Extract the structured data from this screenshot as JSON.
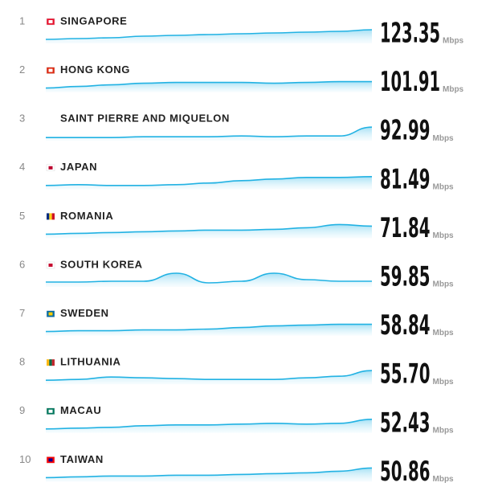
{
  "rows": [
    {
      "rank": 1,
      "country": "SINGAPORE",
      "speed": "123.35",
      "unit": "Mbps"
    },
    {
      "rank": 2,
      "country": "HONG KONG",
      "speed": "101.91",
      "unit": "Mbps"
    },
    {
      "rank": 3,
      "country": "SAINT PIERRE AND MIQUELON",
      "speed": "92.99",
      "unit": "Mbps"
    },
    {
      "rank": 4,
      "country": "JAPAN",
      "speed": "81.49",
      "unit": "Mbps"
    },
    {
      "rank": 5,
      "country": "ROMANIA",
      "speed": "71.84",
      "unit": "Mbps"
    },
    {
      "rank": 6,
      "country": "SOUTH KOREA",
      "speed": "59.85",
      "unit": "Mbps"
    },
    {
      "rank": 7,
      "country": "SWEDEN",
      "speed": "58.84",
      "unit": "Mbps"
    },
    {
      "rank": 8,
      "country": "LITHUANIA",
      "speed": "55.70",
      "unit": "Mbps"
    },
    {
      "rank": 9,
      "country": "MACAU",
      "speed": "52.43",
      "unit": "Mbps"
    },
    {
      "rank": 10,
      "country": "TAIWAN",
      "speed": "50.86",
      "unit": "Mbps"
    }
  ]
}
